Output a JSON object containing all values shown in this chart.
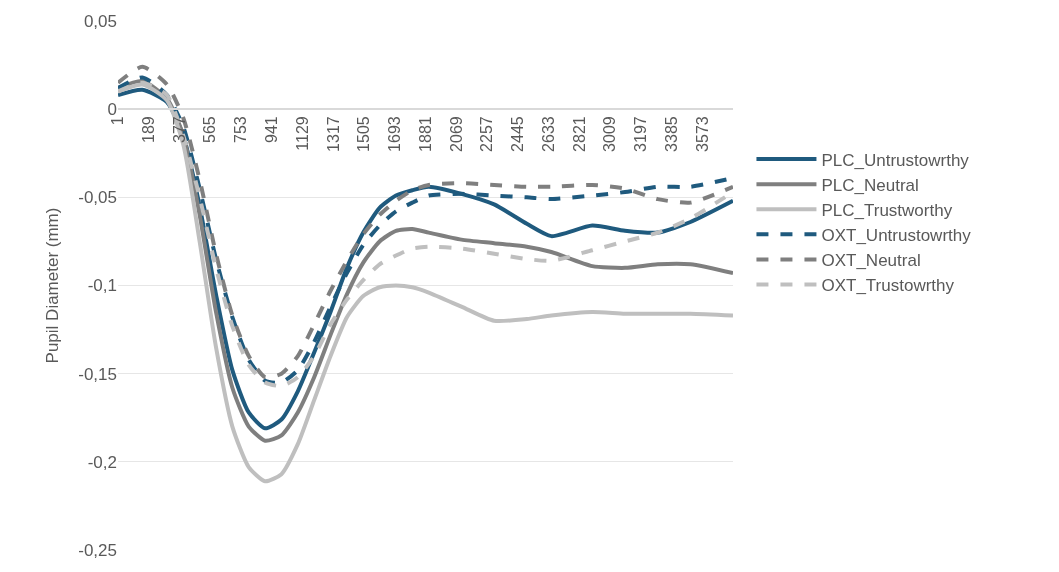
{
  "chart_data": {
    "type": "line",
    "ylabel": "Pupil Diameter (mm)",
    "x": [
      1,
      150,
      300,
      400,
      500,
      600,
      700,
      800,
      900,
      1000,
      1100,
      1200,
      1300,
      1400,
      1500,
      1600,
      1700,
      1800,
      1900,
      2100,
      2300,
      2500,
      2650,
      2900,
      3100,
      3300,
      3500,
      3760
    ],
    "series": [
      {
        "name": "PLC_Untrustowrthy",
        "color": "#1f5a7e",
        "line_style": "solid",
        "values": [
          0.008,
          0.011,
          0.004,
          -0.015,
          -0.055,
          -0.105,
          -0.148,
          -0.172,
          -0.181,
          -0.176,
          -0.16,
          -0.138,
          -0.115,
          -0.09,
          -0.07,
          -0.056,
          -0.049,
          -0.046,
          -0.044,
          -0.048,
          -0.054,
          -0.065,
          -0.072,
          -0.066,
          -0.069,
          -0.07,
          -0.064,
          -0.052
        ]
      },
      {
        "name": "PLC_Neutral",
        "color": "#7f7f7f",
        "line_style": "solid",
        "values": [
          0.012,
          0.016,
          0.006,
          -0.015,
          -0.06,
          -0.115,
          -0.158,
          -0.18,
          -0.188,
          -0.185,
          -0.172,
          -0.152,
          -0.128,
          -0.105,
          -0.087,
          -0.075,
          -0.069,
          -0.068,
          -0.07,
          -0.074,
          -0.076,
          -0.078,
          -0.081,
          -0.089,
          -0.09,
          -0.088,
          -0.088,
          -0.093
        ]
      },
      {
        "name": "PLC_Trustworthy",
        "color": "#bfbfbf",
        "line_style": "solid",
        "values": [
          0.01,
          0.014,
          0.005,
          -0.02,
          -0.075,
          -0.135,
          -0.18,
          -0.203,
          -0.211,
          -0.207,
          -0.19,
          -0.165,
          -0.14,
          -0.118,
          -0.106,
          -0.101,
          -0.1,
          -0.101,
          -0.104,
          -0.112,
          -0.12,
          -0.119,
          -0.117,
          -0.115,
          -0.116,
          -0.116,
          -0.116,
          -0.117
        ]
      },
      {
        "name": "OXT_Untrustowrthy",
        "color": "#1f5a7e",
        "line_style": "dashed",
        "values": [
          0.012,
          0.018,
          0.008,
          -0.01,
          -0.045,
          -0.085,
          -0.118,
          -0.142,
          -0.154,
          -0.155,
          -0.148,
          -0.132,
          -0.112,
          -0.093,
          -0.077,
          -0.066,
          -0.058,
          -0.053,
          -0.049,
          -0.048,
          -0.049,
          -0.05,
          -0.051,
          -0.049,
          -0.047,
          -0.044,
          -0.044,
          -0.039
        ]
      },
      {
        "name": "OXT_Neutral",
        "color": "#7f7f7f",
        "line_style": "dashed",
        "values": [
          0.015,
          0.024,
          0.014,
          -0.005,
          -0.04,
          -0.082,
          -0.117,
          -0.14,
          -0.152,
          -0.15,
          -0.14,
          -0.122,
          -0.103,
          -0.086,
          -0.071,
          -0.06,
          -0.052,
          -0.046,
          -0.043,
          -0.042,
          -0.043,
          -0.044,
          -0.044,
          -0.043,
          -0.045,
          -0.051,
          -0.053,
          -0.044
        ]
      },
      {
        "name": "OXT_Trustowrthy",
        "color": "#bfbfbf",
        "line_style": "dashed",
        "values": [
          0.01,
          0.015,
          0.008,
          -0.015,
          -0.05,
          -0.09,
          -0.123,
          -0.145,
          -0.155,
          -0.157,
          -0.152,
          -0.14,
          -0.122,
          -0.108,
          -0.097,
          -0.088,
          -0.083,
          -0.079,
          -0.078,
          -0.079,
          -0.082,
          -0.085,
          -0.086,
          -0.08,
          -0.075,
          -0.07,
          -0.062,
          -0.047
        ]
      }
    ],
    "xlim": [
      1,
      3760
    ],
    "xticks": [
      1,
      189,
      377,
      565,
      753,
      941,
      1129,
      1317,
      1505,
      1693,
      1881,
      2069,
      2257,
      2445,
      2633,
      2821,
      3009,
      3197,
      3385,
      3573
    ],
    "ylim": [
      -0.25,
      0.05
    ],
    "yticks": [
      {
        "value": 0.05,
        "label": "0,05"
      },
      0,
      {
        "value": -0.05,
        "label": "-0,05"
      },
      {
        "value": -0.1,
        "label": "-0,1"
      },
      {
        "value": -0.15,
        "label": "-0,15"
      },
      {
        "value": -0.2,
        "label": "-0,2"
      },
      {
        "value": -0.25,
        "label": "-0,25"
      }
    ],
    "grid": "y",
    "legend": "right",
    "marker": "none"
  }
}
